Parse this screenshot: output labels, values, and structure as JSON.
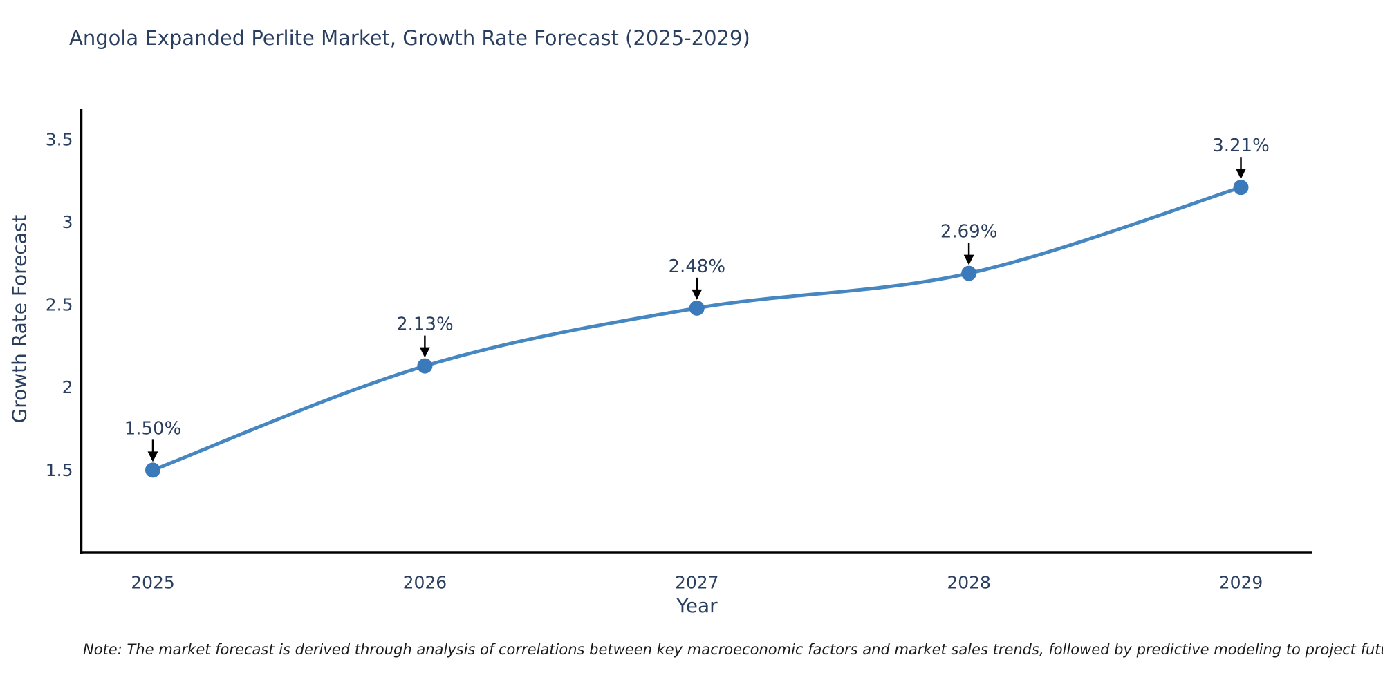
{
  "title": "Angola Expanded Perlite Market, Growth Rate Forecast (2025-2029)",
  "footnote": "Note: The market forecast is derived through analysis of correlations between key macroeconomic factors and market sales trends, followed by predictive modeling to project future sales",
  "chart_data": {
    "type": "line",
    "title": "Angola Expanded Perlite Market, Growth Rate Forecast (2025-2029)",
    "categories": [
      "2025",
      "2026",
      "2027",
      "2028",
      "2029"
    ],
    "x": [
      2025,
      2026,
      2027,
      2028,
      2029
    ],
    "values": [
      1.5,
      2.13,
      2.48,
      2.69,
      3.21
    ],
    "point_labels": [
      "1.50%",
      "2.13%",
      "2.48%",
      "2.69%",
      "3.21%"
    ],
    "xlabel": "Year",
    "ylabel": "Growth Rate Forecast",
    "ylim": [
      1.0,
      3.683
    ],
    "yticks": [
      1.5,
      2,
      2.5,
      3,
      3.5
    ],
    "ytick_labels": [
      "1.5",
      "2",
      "2.5",
      "3",
      "3.5"
    ],
    "grid": false,
    "legend": "none",
    "line_color": "#4787c1",
    "marker_color": "#3a79ba",
    "axis_color": "#000000",
    "text_color": "#2a3f5f",
    "annotation_arrow_color": "#000000"
  }
}
